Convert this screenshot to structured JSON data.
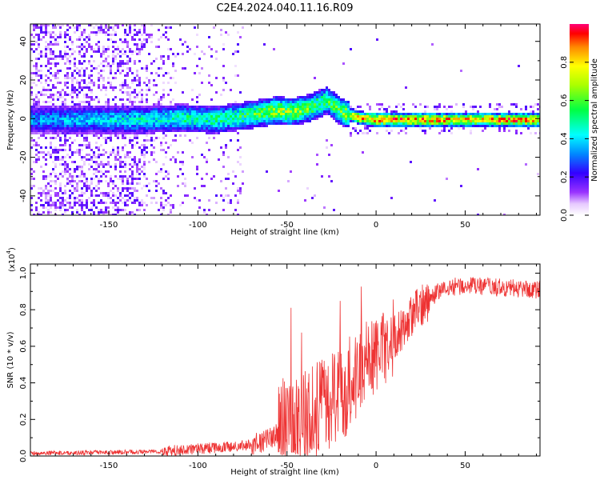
{
  "title": "C2E4.2024.040.11.16.R09",
  "chart_data": [
    {
      "type": "heatmap",
      "xlabel": "Height of straight line (km)",
      "ylabel": "Frequency (Hz)",
      "xlim": [
        -194,
        92
      ],
      "ylim": [
        -50,
        49
      ],
      "xticks": [
        -150,
        -100,
        -50,
        0,
        50
      ],
      "xtick_labels": [
        "-150",
        "-100",
        "-50",
        "0",
        "50"
      ],
      "yticks": [
        -40,
        -20,
        0,
        20,
        40
      ],
      "ytick_labels": [
        "-40",
        "-20",
        "0",
        "20",
        "40"
      ],
      "colorbar": {
        "label": "Normalized spectral amplitude",
        "range": [
          0,
          1
        ],
        "ticks": [
          0.0,
          0.2,
          0.4,
          0.6,
          0.8
        ],
        "tick_labels": [
          "0.0",
          "0.2",
          "0.4",
          "0.6",
          "0.8"
        ]
      },
      "ridge": [
        {
          "x": -194,
          "freq": 0,
          "amp": 0.35
        },
        {
          "x": -160,
          "freq": 0,
          "amp": 0.4
        },
        {
          "x": -130,
          "freq": 0,
          "amp": 0.45
        },
        {
          "x": -110,
          "freq": 1,
          "amp": 0.5
        },
        {
          "x": -90,
          "freq": 0,
          "amp": 0.5
        },
        {
          "x": -75,
          "freq": 2,
          "amp": 0.55
        },
        {
          "x": -62,
          "freq": 4,
          "amp": 0.6
        },
        {
          "x": -55,
          "freq": 5,
          "amp": 0.7
        },
        {
          "x": -48,
          "freq": 4,
          "amp": 0.65
        },
        {
          "x": -38,
          "freq": 6,
          "amp": 0.6
        },
        {
          "x": -28,
          "freq": 10,
          "amp": 0.55
        },
        {
          "x": -20,
          "freq": 4,
          "amp": 0.6
        },
        {
          "x": -10,
          "freq": 1,
          "amp": 0.8
        },
        {
          "x": 0,
          "freq": 0,
          "amp": 0.9
        },
        {
          "x": 20,
          "freq": 0,
          "amp": 0.9
        },
        {
          "x": 50,
          "freq": 0,
          "amp": 0.85
        },
        {
          "x": 92,
          "freq": 0,
          "amp": 0.9
        }
      ]
    },
    {
      "type": "line",
      "xlabel": "Height of straight line (km)",
      "ylabel": "SNR (10 * v/v)",
      "y_scale_note": "(x10",
      "y_scale_exp": "4",
      "y_scale_close": ")",
      "xlim": [
        -194,
        92
      ],
      "ylim": [
        0,
        1.05
      ],
      "xticks": [
        -150,
        -100,
        -50,
        0,
        50
      ],
      "xtick_labels": [
        "-150",
        "-100",
        "-50",
        "0",
        "50"
      ],
      "yticks": [
        0.0,
        0.2,
        0.4,
        0.6,
        0.8,
        1.0
      ],
      "ytick_labels": [
        "0.0",
        "0.2",
        "0.4",
        "0.6",
        "0.8",
        "1.0"
      ],
      "series": [
        {
          "color": "#ee3333",
          "trend": {
            "x": [
              -194,
              -150,
              -120,
              -100,
              -80,
              -65,
              -55,
              -45,
              -35,
              -25,
              -15,
              -5,
              5,
              15,
              25,
              35,
              45,
              55,
              70,
              92
            ],
            "y": [
              0.015,
              0.02,
              0.025,
              0.04,
              0.05,
              0.07,
              0.12,
              0.2,
              0.25,
              0.3,
              0.38,
              0.5,
              0.6,
              0.7,
              0.82,
              0.9,
              0.93,
              0.93,
              0.92,
              0.91
            ]
          }
        }
      ]
    }
  ]
}
